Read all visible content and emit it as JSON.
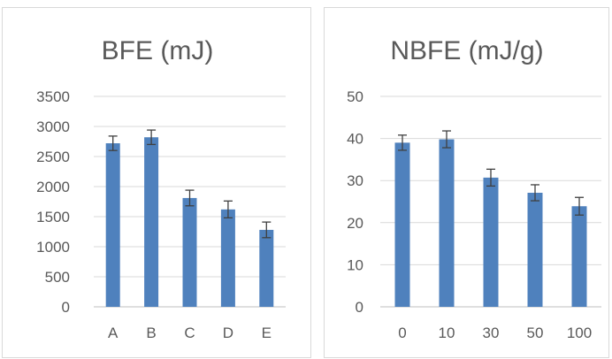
{
  "chart_data": [
    {
      "type": "bar",
      "title": "BFE (mJ)",
      "xlabel": "",
      "ylabel": "",
      "categories": [
        "A",
        "B",
        "C",
        "D",
        "E"
      ],
      "values": [
        2720,
        2820,
        1810,
        1620,
        1280
      ],
      "errors": [
        120,
        120,
        130,
        140,
        130
      ],
      "ylim": [
        0,
        3500
      ],
      "yticks": [
        "0",
        "500",
        "1000",
        "1500",
        "2000",
        "2500",
        "3000",
        "3500"
      ],
      "grid": true,
      "bar_color": "#4f81bd"
    },
    {
      "type": "bar",
      "title": "NBFE (mJ/g)",
      "xlabel": "",
      "ylabel": "",
      "categories": [
        "0",
        "10",
        "30",
        "50",
        "100"
      ],
      "values": [
        39,
        39.8,
        30.7,
        27.1,
        23.9
      ],
      "errors": [
        1.8,
        2.0,
        2.0,
        1.9,
        2.1
      ],
      "ylim": [
        0,
        50
      ],
      "yticks": [
        "0",
        "10",
        "20",
        "30",
        "40",
        "50"
      ],
      "grid": true,
      "bar_color": "#4f81bd"
    }
  ]
}
